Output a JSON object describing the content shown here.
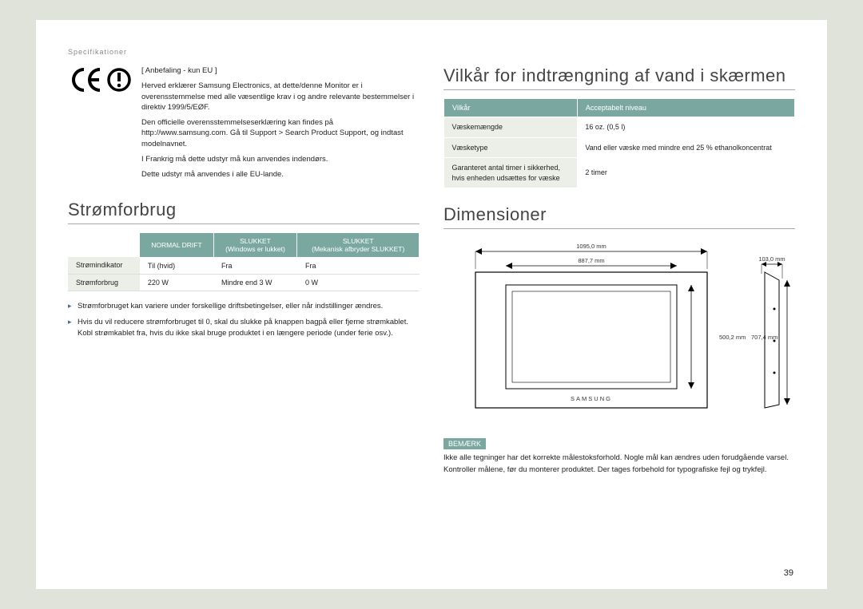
{
  "breadcrumb": "Specifikationer",
  "pageNumber": "39",
  "ce": {
    "title": "[ Anbefaling - kun EU ]",
    "p1": "Herved erklærer Samsung Electronics, at dette/denne Monitor er i overensstemmelse med alle væsentlige krav i og andre relevante bestemmelser i direktiv 1999/5/EØF.",
    "p2": "Den officielle overensstemmelseserklæring kan findes på http://www.samsung.com. Gå til Support > Search Product Support, og indtast modelnavnet.",
    "p3": "I Frankrig må dette udstyr må kun anvendes indendørs.",
    "p4": "Dette udstyr må anvendes i alle EU-lande."
  },
  "power": {
    "heading": "Strømforbrug",
    "headers": [
      "",
      "NORMAL DRIFT",
      "SLUKKET (Windows er lukket)",
      "SLUKKET (Mekanisk afbryder SLUKKET)"
    ],
    "rows": [
      [
        "Strømindikator",
        "Til (hvid)",
        "Fra",
        "Fra"
      ],
      [
        "Strømforbrug",
        "220 W",
        "Mindre end 3 W",
        "0 W"
      ]
    ],
    "notes": [
      "Strømforbruget kan variere under forskellige driftsbetingelser, eller når indstillinger ændres.",
      "Hvis du vil reducere strømforbruget til 0, skal du slukke på knappen bagpå eller fjerne strømkablet. Kobl strømkablet fra, hvis du ikke skal bruge produktet i en længere periode (under ferie osv.)."
    ]
  },
  "water": {
    "heading": "Vilkår for indtrængning af vand i skærmen",
    "headers": [
      "Vilkår",
      "Acceptabelt niveau"
    ],
    "rows": [
      [
        "Væskemængde",
        "16 oz. (0,5 l)"
      ],
      [
        "Væsketype",
        "Vand eller væske med mindre end 25 % ethanolkoncentrat"
      ],
      [
        "Garanteret antal timer i sikkerhed, hvis enheden udsættes for væske",
        "2 timer"
      ]
    ]
  },
  "dims": {
    "heading": "Dimensioner",
    "w_outer": "1095,0 mm",
    "w_inner": "887,7 mm",
    "d": "103,0 mm",
    "h_inner": "500,2 mm",
    "h_outer": "707,4 mm",
    "brand": "SAMSUNG"
  },
  "remark": {
    "badge": "BEMÆRK",
    "text": "Ikke alle tegninger har det korrekte målestoksforhold. Nogle mål kan ændres uden forudgående varsel. Kontroller målene, før du monterer produktet. Der tages forbehold for typografiske fejl og trykfejl."
  }
}
